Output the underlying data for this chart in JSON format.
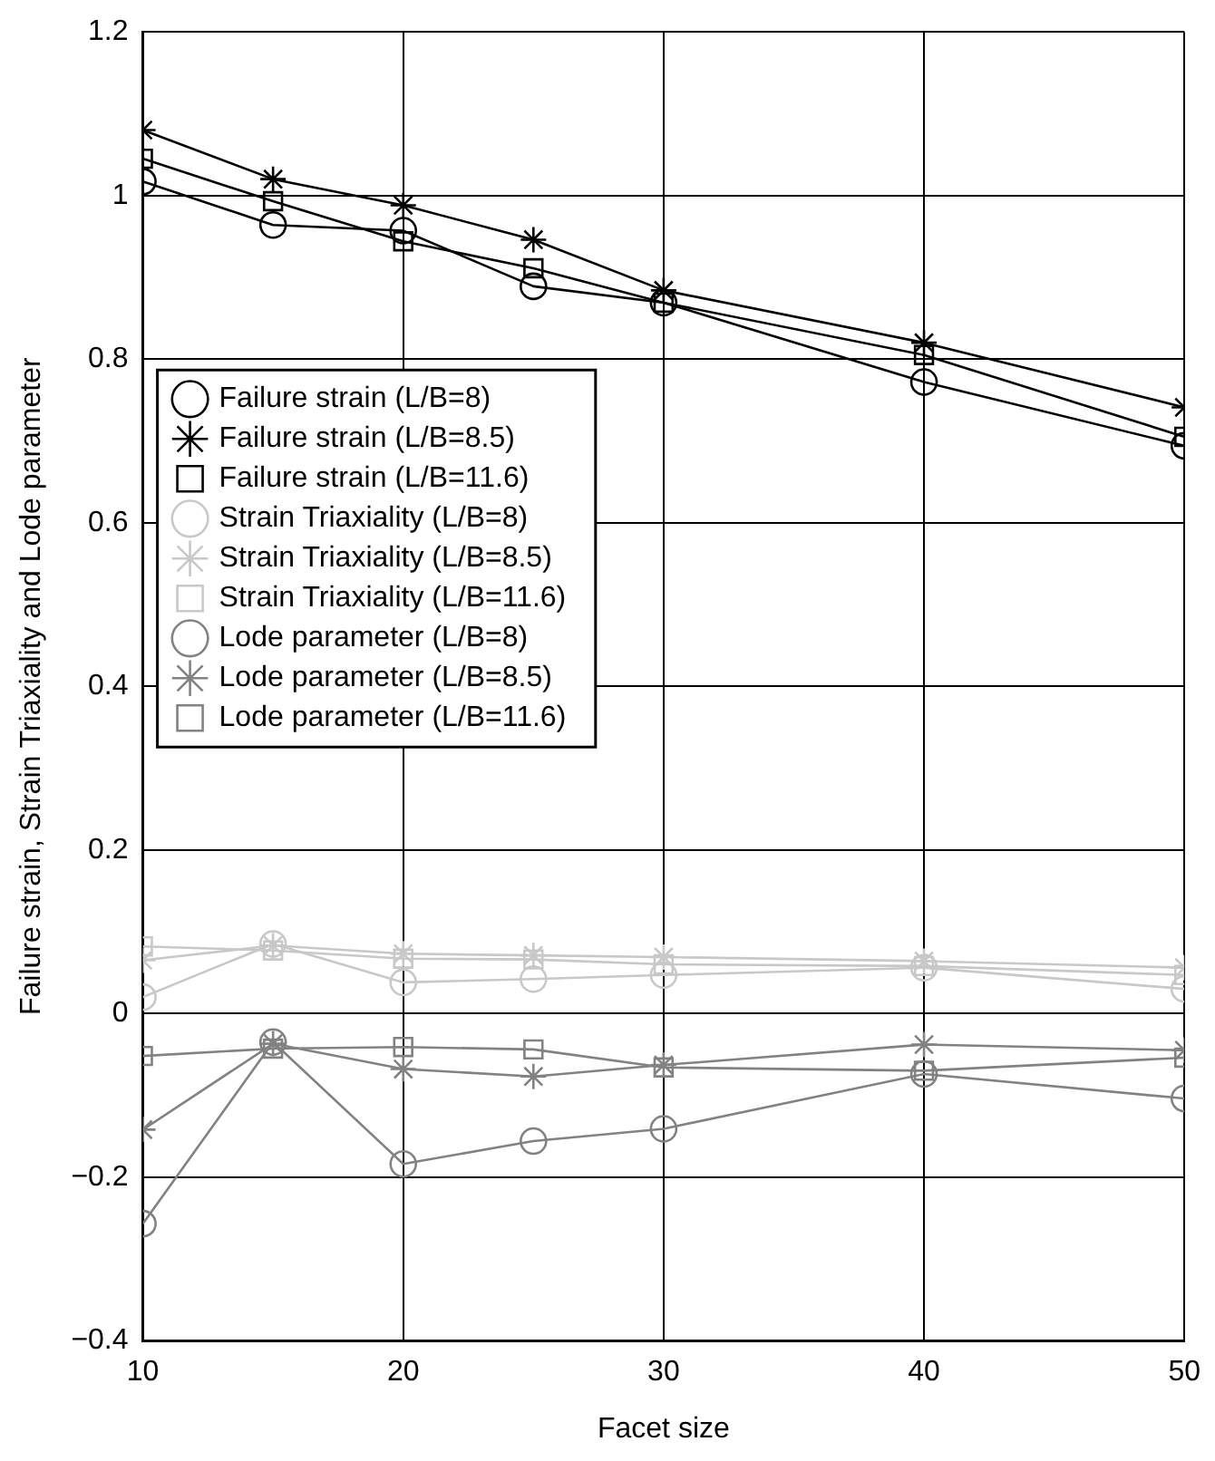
{
  "chart_data": {
    "type": "line",
    "xlabel": "Facet size",
    "ylabel": "Failure strain, Strain Triaxiality and Lode parameter",
    "x": [
      10,
      15,
      20,
      25,
      30,
      40,
      50
    ],
    "xlim": [
      10,
      50
    ],
    "xticks": [
      10,
      20,
      30,
      40,
      50
    ],
    "ylim": [
      -0.4,
      1.2
    ],
    "yticks": [
      {
        "value": -0.4,
        "label": "−0.4"
      },
      {
        "value": -0.2,
        "label": "−0.2"
      },
      0,
      0.2,
      0.4,
      0.6,
      0.8,
      1,
      1.2
    ],
    "grid": true,
    "legend": "left",
    "line_style": "solid",
    "series": [
      {
        "name": "Failure strain (L/B=8)",
        "color": "#000000",
        "marker": "circle",
        "values": [
          1.017,
          0.964,
          0.957,
          0.889,
          0.869,
          0.772,
          0.694
        ]
      },
      {
        "name": "Failure strain (L/B=8.5)",
        "color": "#000000",
        "marker": "cross",
        "values": [
          1.08,
          1.02,
          0.988,
          0.946,
          0.884,
          0.82,
          0.741
        ]
      },
      {
        "name": "Failure strain (L/B=11.6)",
        "color": "#000000",
        "marker": "square",
        "values": [
          1.045,
          0.993,
          0.944,
          0.911,
          0.869,
          0.805,
          0.705
        ]
      },
      {
        "name": "Strain Triaxiality (L/B=8)",
        "color": "#c8c8c8",
        "marker": "circle",
        "values": [
          0.02,
          0.085,
          0.038,
          0.042,
          0.047,
          0.056,
          0.03
        ]
      },
      {
        "name": "Strain Triaxiality (L/B=8.5)",
        "color": "#c8c8c8",
        "marker": "cross",
        "values": [
          0.065,
          0.083,
          0.073,
          0.071,
          0.069,
          0.064,
          0.056
        ]
      },
      {
        "name": "Strain Triaxiality (L/B=11.6)",
        "color": "#c8c8c8",
        "marker": "square",
        "values": [
          0.082,
          0.077,
          0.067,
          0.066,
          0.06,
          0.058,
          0.047
        ]
      },
      {
        "name": "Lode parameter (L/B=8)",
        "color": "#828282",
        "marker": "circle",
        "values": [
          -0.257,
          -0.035,
          -0.184,
          -0.156,
          -0.141,
          -0.074,
          -0.104
        ]
      },
      {
        "name": "Lode parameter (L/B=8.5)",
        "color": "#828282",
        "marker": "cross",
        "values": [
          -0.142,
          -0.037,
          -0.068,
          -0.077,
          -0.063,
          -0.038,
          -0.045
        ]
      },
      {
        "name": "Lode parameter (L/B=11.6)",
        "color": "#828282",
        "marker": "square",
        "values": [
          -0.052,
          -0.043,
          -0.041,
          -0.044,
          -0.066,
          -0.07,
          -0.054
        ]
      }
    ]
  }
}
